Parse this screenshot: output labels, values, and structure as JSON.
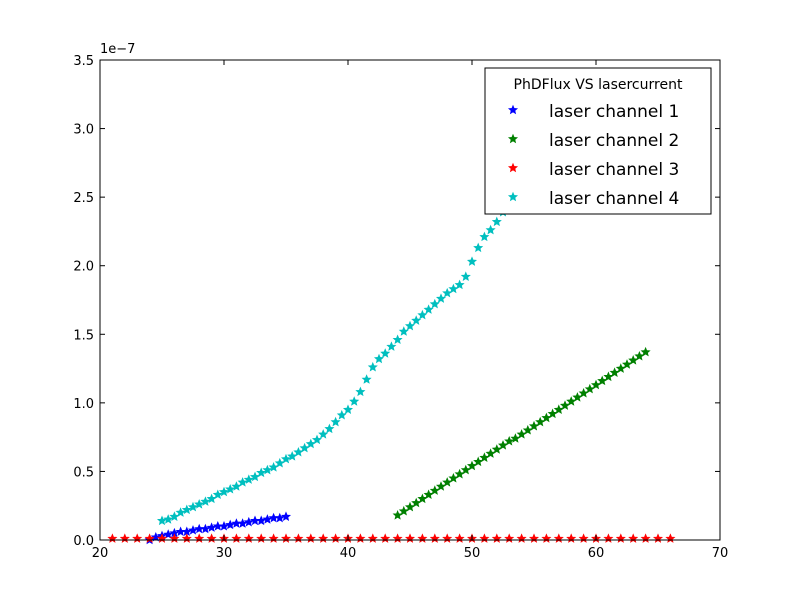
{
  "chart_data": {
    "type": "scatter",
    "title": "",
    "xlabel": "",
    "ylabel": "",
    "xlim": [
      20,
      70
    ],
    "ylim": [
      0,
      3.5
    ],
    "y_offset_label": "1e−7",
    "x_ticks": [
      20,
      30,
      40,
      50,
      60,
      70
    ],
    "x_tick_labels": [
      "20",
      "30",
      "40",
      "50",
      "60",
      "70"
    ],
    "y_ticks": [
      0,
      0.5,
      1.0,
      1.5,
      2.0,
      2.5,
      3.0,
      3.5
    ],
    "y_tick_labels": [
      "0.0",
      "0.5",
      "1.0",
      "1.5",
      "2.0",
      "2.5",
      "3.0",
      "3.5"
    ],
    "grid": false,
    "legend": {
      "title": "PhDFlux VS lasercurrent",
      "placement": "top-right"
    },
    "marker": "star",
    "series": [
      {
        "name": "laser channel 1",
        "color": "#0000ff",
        "x": [
          24.0,
          24.5,
          25.0,
          25.5,
          26.0,
          26.5,
          27.0,
          27.5,
          28.0,
          28.5,
          29.0,
          29.5,
          30.0,
          30.5,
          31.0,
          31.5,
          32.0,
          32.5,
          33.0,
          33.5,
          34.0,
          34.5,
          35.0
        ],
        "y": [
          0.0,
          0.02,
          0.03,
          0.04,
          0.05,
          0.06,
          0.06,
          0.07,
          0.08,
          0.08,
          0.09,
          0.1,
          0.1,
          0.11,
          0.12,
          0.12,
          0.13,
          0.14,
          0.14,
          0.15,
          0.16,
          0.16,
          0.17
        ]
      },
      {
        "name": "laser channel 2",
        "color": "#008000",
        "x": [
          44.0,
          44.5,
          45.0,
          45.5,
          46.0,
          46.5,
          47.0,
          47.5,
          48.0,
          48.5,
          49.0,
          49.5,
          50.0,
          50.5,
          51.0,
          51.5,
          52.0,
          52.5,
          53.0,
          53.5,
          54.0,
          54.5,
          55.0,
          55.5,
          56.0,
          56.5,
          57.0,
          57.5,
          58.0,
          58.5,
          59.0,
          59.5,
          60.0,
          60.5,
          61.0,
          61.5,
          62.0,
          62.5,
          63.0,
          63.5,
          64.0
        ],
        "y": [
          0.18,
          0.21,
          0.24,
          0.27,
          0.3,
          0.33,
          0.36,
          0.39,
          0.42,
          0.45,
          0.48,
          0.51,
          0.54,
          0.57,
          0.6,
          0.63,
          0.66,
          0.69,
          0.72,
          0.74,
          0.77,
          0.8,
          0.83,
          0.86,
          0.89,
          0.92,
          0.95,
          0.98,
          1.01,
          1.04,
          1.07,
          1.1,
          1.13,
          1.16,
          1.19,
          1.22,
          1.25,
          1.28,
          1.31,
          1.34,
          1.37
        ]
      },
      {
        "name": "laser channel 3",
        "color": "#ff0000",
        "x": [
          21,
          22,
          23,
          24,
          25,
          26,
          27,
          28,
          29,
          30,
          31,
          32,
          33,
          34,
          35,
          36,
          37,
          38,
          39,
          40,
          41,
          42,
          43,
          44,
          45,
          46,
          47,
          48,
          49,
          50,
          51,
          52,
          53,
          54,
          55,
          56,
          57,
          58,
          59,
          60,
          61,
          62,
          63,
          64,
          65,
          66
        ],
        "y": [
          0.01,
          0.01,
          0.01,
          0.01,
          0.01,
          0.01,
          0.01,
          0.01,
          0.01,
          0.01,
          0.01,
          0.01,
          0.01,
          0.01,
          0.01,
          0.01,
          0.01,
          0.01,
          0.01,
          0.01,
          0.01,
          0.01,
          0.01,
          0.01,
          0.01,
          0.01,
          0.01,
          0.01,
          0.01,
          0.01,
          0.01,
          0.01,
          0.01,
          0.01,
          0.01,
          0.01,
          0.01,
          0.01,
          0.01,
          0.01,
          0.01,
          0.01,
          0.01,
          0.01,
          0.01,
          0.01
        ]
      },
      {
        "name": "laser channel 4",
        "color": "#00bfbf",
        "x": [
          25.0,
          25.5,
          26.0,
          26.5,
          27.0,
          27.5,
          28.0,
          28.5,
          29.0,
          29.5,
          30.0,
          30.5,
          31.0,
          31.5,
          32.0,
          32.5,
          33.0,
          33.5,
          34.0,
          34.5,
          35.0,
          35.5,
          36.0,
          36.5,
          37.0,
          37.5,
          38.0,
          38.5,
          39.0,
          39.5,
          40.0,
          40.5,
          41.0,
          41.5,
          42.0,
          42.5,
          43.0,
          43.5,
          44.0,
          44.5,
          45.0,
          45.5,
          46.0,
          46.5,
          47.0,
          47.5,
          48.0,
          48.5,
          49.0,
          49.5,
          50.0,
          50.5,
          51.0,
          51.5,
          52.0,
          52.5,
          53.0,
          53.5
        ],
        "y": [
          0.14,
          0.15,
          0.17,
          0.2,
          0.22,
          0.24,
          0.26,
          0.28,
          0.3,
          0.33,
          0.35,
          0.37,
          0.39,
          0.42,
          0.44,
          0.46,
          0.49,
          0.51,
          0.53,
          0.56,
          0.59,
          0.61,
          0.64,
          0.67,
          0.7,
          0.73,
          0.77,
          0.81,
          0.86,
          0.91,
          0.95,
          1.01,
          1.08,
          1.17,
          1.26,
          1.32,
          1.36,
          1.41,
          1.46,
          1.52,
          1.56,
          1.6,
          1.64,
          1.68,
          1.72,
          1.76,
          1.8,
          1.83,
          1.86,
          1.92,
          2.03,
          2.13,
          2.21,
          2.26,
          2.32,
          2.39,
          2.46,
          2.53
        ]
      }
    ]
  }
}
